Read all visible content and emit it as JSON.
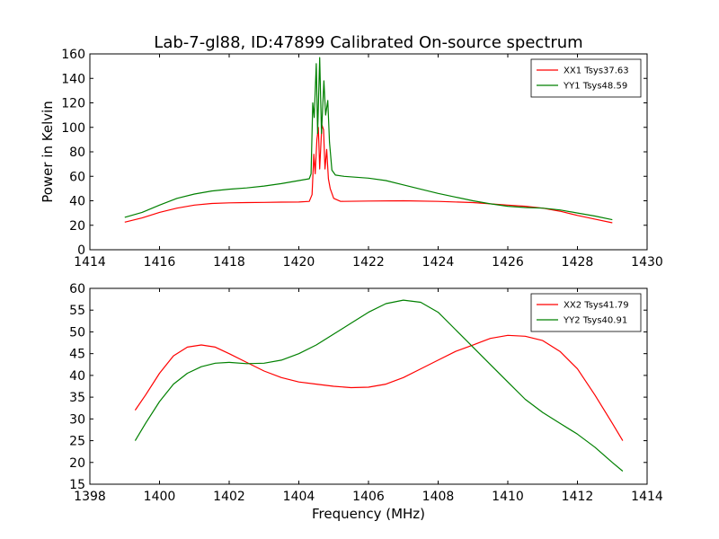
{
  "title": "Lab-7-gl88, ID:47899 Calibrated On-source spectrum",
  "xlabel": "Frequency (MHz)",
  "ylabel": "Power in Kelvin",
  "chart_data": [
    {
      "type": "line",
      "title": "Lab-7-gl88, ID:47899 Calibrated On-source spectrum",
      "xlabel": "",
      "ylabel": "Power in Kelvin",
      "xlim": [
        1414,
        1430
      ],
      "ylim": [
        0,
        160
      ],
      "xticks": [
        1414,
        1416,
        1418,
        1420,
        1422,
        1424,
        1426,
        1428,
        1430
      ],
      "yticks": [
        0,
        20,
        40,
        60,
        80,
        100,
        120,
        140,
        160
      ],
      "legend_position": "top-right",
      "grid": false,
      "series": [
        {
          "name": "XX1 Tsys37.63",
          "color": "#ff0000",
          "points": [
            [
              1415.0,
              22.5
            ],
            [
              1415.5,
              26.0
            ],
            [
              1416.0,
              30.5
            ],
            [
              1416.5,
              34.0
            ],
            [
              1417.0,
              36.5
            ],
            [
              1417.5,
              37.8
            ],
            [
              1418.0,
              38.3
            ],
            [
              1418.5,
              38.5
            ],
            [
              1419.0,
              38.7
            ],
            [
              1419.5,
              38.9
            ],
            [
              1420.0,
              39.0
            ],
            [
              1420.3,
              39.5
            ],
            [
              1420.38,
              45
            ],
            [
              1420.43,
              78
            ],
            [
              1420.47,
              62
            ],
            [
              1420.52,
              90
            ],
            [
              1420.56,
              100
            ],
            [
              1420.6,
              66
            ],
            [
              1420.66,
              102
            ],
            [
              1420.71,
              98
            ],
            [
              1420.75,
              66
            ],
            [
              1420.8,
              82
            ],
            [
              1420.85,
              58
            ],
            [
              1420.9,
              50
            ],
            [
              1421.0,
              42
            ],
            [
              1421.2,
              39.5
            ],
            [
              1422.0,
              39.8
            ],
            [
              1423.0,
              40.0
            ],
            [
              1424.0,
              39.5
            ],
            [
              1425.0,
              38.5
            ],
            [
              1426.0,
              36.5
            ],
            [
              1426.5,
              35.5
            ],
            [
              1427.0,
              34.0
            ],
            [
              1427.5,
              31.5
            ],
            [
              1428.0,
              28.0
            ],
            [
              1428.5,
              25.0
            ],
            [
              1429.0,
              22.0
            ]
          ]
        },
        {
          "name": "YY1 Tsys48.59",
          "color": "#008000",
          "points": [
            [
              1415.0,
              26.5
            ],
            [
              1415.5,
              30.5
            ],
            [
              1416.0,
              36.5
            ],
            [
              1416.5,
              42.0
            ],
            [
              1417.0,
              45.5
            ],
            [
              1417.5,
              48.0
            ],
            [
              1418.0,
              49.5
            ],
            [
              1418.5,
              50.5
            ],
            [
              1419.0,
              52.0
            ],
            [
              1419.5,
              54.0
            ],
            [
              1420.0,
              56.5
            ],
            [
              1420.3,
              58.0
            ],
            [
              1420.35,
              62
            ],
            [
              1420.4,
              120
            ],
            [
              1420.44,
              108
            ],
            [
              1420.5,
              152
            ],
            [
              1420.54,
              95
            ],
            [
              1420.6,
              157
            ],
            [
              1420.65,
              95
            ],
            [
              1420.72,
              138
            ],
            [
              1420.77,
              110
            ],
            [
              1420.83,
              122
            ],
            [
              1420.88,
              88
            ],
            [
              1420.95,
              65
            ],
            [
              1421.05,
              61
            ],
            [
              1421.3,
              60.0
            ],
            [
              1422.0,
              58.5
            ],
            [
              1422.5,
              56.5
            ],
            [
              1423.0,
              53.0
            ],
            [
              1423.5,
              49.5
            ],
            [
              1424.0,
              46.0
            ],
            [
              1424.5,
              43.0
            ],
            [
              1425.0,
              40.0
            ],
            [
              1425.5,
              37.5
            ],
            [
              1426.0,
              35.5
            ],
            [
              1426.5,
              34.5
            ],
            [
              1427.0,
              34.0
            ],
            [
              1427.5,
              32.5
            ],
            [
              1428.0,
              30.0
            ],
            [
              1428.5,
              27.5
            ],
            [
              1429.0,
              24.5
            ]
          ]
        }
      ]
    },
    {
      "type": "line",
      "title": "",
      "xlabel": "Frequency (MHz)",
      "ylabel": "",
      "xlim": [
        1398,
        1414
      ],
      "ylim": [
        15,
        60
      ],
      "xticks": [
        1398,
        1400,
        1402,
        1404,
        1406,
        1408,
        1410,
        1412,
        1414
      ],
      "yticks": [
        15,
        20,
        25,
        30,
        35,
        40,
        45,
        50,
        55,
        60
      ],
      "legend_position": "top-right",
      "grid": false,
      "series": [
        {
          "name": "XX2 Tsys41.79",
          "color": "#ff0000",
          "points": [
            [
              1399.3,
              32.0
            ],
            [
              1399.6,
              35.5
            ],
            [
              1400.0,
              40.5
            ],
            [
              1400.4,
              44.5
            ],
            [
              1400.8,
              46.5
            ],
            [
              1401.2,
              47.0
            ],
            [
              1401.6,
              46.5
            ],
            [
              1402.0,
              45.0
            ],
            [
              1402.5,
              43.0
            ],
            [
              1403.0,
              41.0
            ],
            [
              1403.5,
              39.5
            ],
            [
              1404.0,
              38.5
            ],
            [
              1404.5,
              38.0
            ],
            [
              1405.0,
              37.5
            ],
            [
              1405.5,
              37.2
            ],
            [
              1406.0,
              37.3
            ],
            [
              1406.5,
              38.0
            ],
            [
              1407.0,
              39.5
            ],
            [
              1407.5,
              41.5
            ],
            [
              1408.0,
              43.5
            ],
            [
              1408.5,
              45.5
            ],
            [
              1409.0,
              47.0
            ],
            [
              1409.5,
              48.5
            ],
            [
              1410.0,
              49.2
            ],
            [
              1410.5,
              49.0
            ],
            [
              1411.0,
              48.0
            ],
            [
              1411.5,
              45.5
            ],
            [
              1412.0,
              41.5
            ],
            [
              1412.5,
              35.5
            ],
            [
              1413.0,
              29.0
            ],
            [
              1413.3,
              25.0
            ]
          ]
        },
        {
          "name": "YY2 Tsys40.91",
          "color": "#008000",
          "points": [
            [
              1399.3,
              25.0
            ],
            [
              1399.6,
              29.0
            ],
            [
              1400.0,
              34.0
            ],
            [
              1400.4,
              38.0
            ],
            [
              1400.8,
              40.5
            ],
            [
              1401.2,
              42.0
            ],
            [
              1401.6,
              42.8
            ],
            [
              1402.0,
              43.0
            ],
            [
              1402.5,
              42.7
            ],
            [
              1403.0,
              42.8
            ],
            [
              1403.5,
              43.5
            ],
            [
              1404.0,
              45.0
            ],
            [
              1404.5,
              47.0
            ],
            [
              1405.0,
              49.5
            ],
            [
              1405.5,
              52.0
            ],
            [
              1406.0,
              54.5
            ],
            [
              1406.5,
              56.5
            ],
            [
              1407.0,
              57.3
            ],
            [
              1407.5,
              56.8
            ],
            [
              1408.0,
              54.5
            ],
            [
              1408.5,
              50.5
            ],
            [
              1409.0,
              46.5
            ],
            [
              1409.5,
              42.5
            ],
            [
              1410.0,
              38.5
            ],
            [
              1410.5,
              34.5
            ],
            [
              1411.0,
              31.5
            ],
            [
              1411.5,
              29.0
            ],
            [
              1412.0,
              26.5
            ],
            [
              1412.5,
              23.5
            ],
            [
              1413.0,
              20.0
            ],
            [
              1413.3,
              18.0
            ]
          ]
        }
      ]
    }
  ]
}
